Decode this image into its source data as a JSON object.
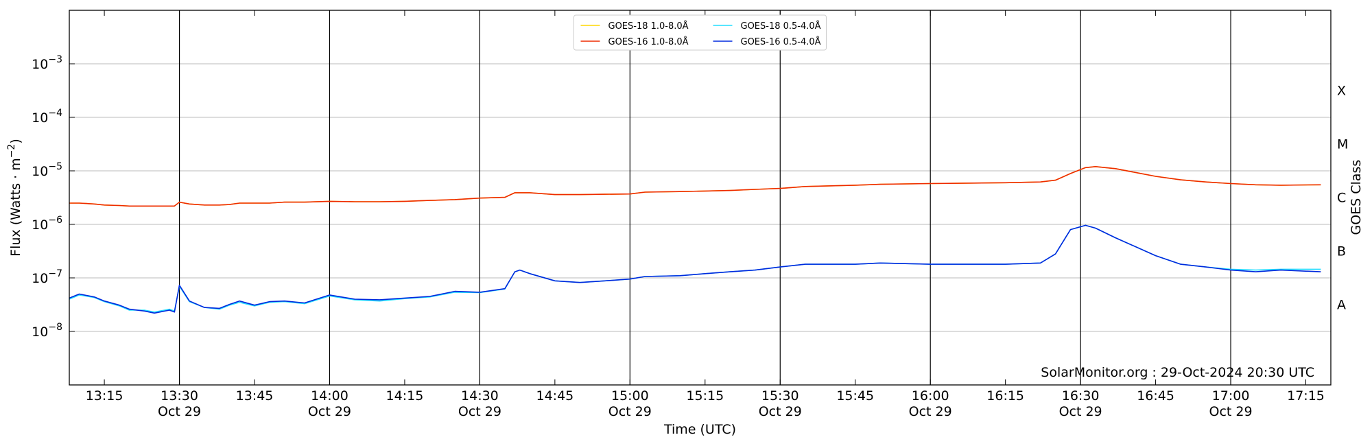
{
  "chart_data": {
    "type": "line",
    "xlabel": "Time (UTC)",
    "ylabel": {
      "base": "Flux (Watts · m",
      "exponent": "−2",
      "end": ")"
    },
    "y2label": "GOES Class",
    "annotation": "SolarMonitor.org : 29-Oct-2024 20:30 UTC",
    "log_y": true,
    "grid": true,
    "xgrid": true,
    "legend": "upper center",
    "legend_columns": 2,
    "xlim": [
      "13:08",
      "17:20"
    ],
    "xticks": [
      "13:15",
      {
        "value": "13:30",
        "label": [
          "13:30",
          "Oct 29"
        ]
      },
      "13:45",
      {
        "value": "14:00",
        "label": [
          "14:00",
          "Oct 29"
        ]
      },
      "14:15",
      {
        "value": "14:30",
        "label": [
          "14:30",
          "Oct 29"
        ]
      },
      "14:45",
      {
        "value": "15:00",
        "label": [
          "15:00",
          "Oct 29"
        ]
      },
      "15:15",
      {
        "value": "15:30",
        "label": [
          "15:30",
          "Oct 29"
        ]
      },
      "15:45",
      {
        "value": "16:00",
        "label": [
          "16:00",
          "Oct 29"
        ]
      },
      "16:15",
      {
        "value": "16:30",
        "label": [
          "16:30",
          "Oct 29"
        ]
      },
      "16:45",
      {
        "value": "17:00",
        "label": [
          "17:00",
          "Oct 29"
        ]
      },
      "17:15"
    ],
    "ylim": [
      1e-09,
      0.01
    ],
    "yticks": [
      {
        "value": 1e-08,
        "label": {
          "base": "10",
          "exponent": "−8"
        }
      },
      {
        "value": 1e-07,
        "label": {
          "base": "10",
          "exponent": "−7"
        }
      },
      {
        "value": 1e-06,
        "label": {
          "base": "10",
          "exponent": "−6"
        }
      },
      {
        "value": 1e-05,
        "label": {
          "base": "10",
          "exponent": "−5"
        }
      },
      {
        "value": 0.0001,
        "label": {
          "base": "10",
          "exponent": "−4"
        }
      },
      {
        "value": 0.001,
        "label": {
          "base": "10",
          "exponent": "−3"
        }
      }
    ],
    "y2lim": [
      1e-09,
      0.01
    ],
    "y2ticks": [
      {
        "value": 3.2e-08,
        "label": "A"
      },
      {
        "value": 3.2e-07,
        "label": "B"
      },
      {
        "value": 3.2e-06,
        "label": "C"
      },
      {
        "value": 3.2e-05,
        "label": "M"
      },
      {
        "value": 0.00032,
        "label": "X"
      }
    ],
    "x": [
      "13:08",
      "13:10",
      "13:13",
      "13:15",
      "13:18",
      "13:20",
      "13:23",
      "13:25",
      "13:28",
      "13:29",
      "13:30",
      "13:32",
      "13:35",
      "13:38",
      "13:40",
      "13:42",
      "13:45",
      "13:48",
      "13:51",
      "13:55",
      "14:00",
      "14:05",
      "14:10",
      "14:15",
      "14:20",
      "14:25",
      "14:30",
      "14:35",
      "14:37",
      "14:38",
      "14:40",
      "14:45",
      "14:50",
      "14:55",
      "15:00",
      "15:03",
      "15:10",
      "15:15",
      "15:20",
      "15:25",
      "15:30",
      "15:35",
      "15:45",
      "15:50",
      "16:00",
      "16:15",
      "16:22",
      "16:25",
      "16:28",
      "16:31",
      "16:33",
      "16:37",
      "16:45",
      "16:50",
      "16:55",
      "17:00",
      "17:05",
      "17:10",
      "17:18"
    ],
    "series": [
      {
        "name": "GOES-18 1.0-8.0Å",
        "color": "#ffd700",
        "values": [
          2.5e-06,
          2.5e-06,
          2.4e-06,
          2.3e-06,
          2.25e-06,
          2.2e-06,
          2.2e-06,
          2.2e-06,
          2.2e-06,
          2.2e-06,
          2.6e-06,
          2.4e-06,
          2.3e-06,
          2.3e-06,
          2.35e-06,
          2.5e-06,
          2.5e-06,
          2.5e-06,
          2.6e-06,
          2.6e-06,
          2.7e-06,
          2.65e-06,
          2.65e-06,
          2.7e-06,
          2.8e-06,
          2.9e-06,
          3.1e-06,
          3.2e-06,
          3.9e-06,
          3.9e-06,
          3.9e-06,
          3.6e-06,
          3.6e-06,
          3.65e-06,
          3.7e-06,
          4e-06,
          4.1e-06,
          4.2e-06,
          4.3e-06,
          4.5e-06,
          4.7e-06,
          5.1e-06,
          5.4e-06,
          5.6e-06,
          5.8e-06,
          6e-06,
          6.2e-06,
          6.7e-06,
          8.9e-06,
          1.15e-05,
          1.2e-05,
          1.1e-05,
          7.9e-06,
          6.8e-06,
          6.2e-06,
          5.8e-06,
          5.5e-06,
          5.4e-06,
          5.5e-06
        ]
      },
      {
        "name": "GOES-16 1.0-8.0Å",
        "color": "#ee2a00",
        "values": [
          2.5e-06,
          2.5e-06,
          2.4e-06,
          2.3e-06,
          2.25e-06,
          2.2e-06,
          2.2e-06,
          2.2e-06,
          2.2e-06,
          2.2e-06,
          2.6e-06,
          2.4e-06,
          2.3e-06,
          2.3e-06,
          2.35e-06,
          2.5e-06,
          2.5e-06,
          2.5e-06,
          2.6e-06,
          2.6e-06,
          2.7e-06,
          2.65e-06,
          2.65e-06,
          2.7e-06,
          2.8e-06,
          2.9e-06,
          3.1e-06,
          3.2e-06,
          3.9e-06,
          3.9e-06,
          3.9e-06,
          3.6e-06,
          3.6e-06,
          3.65e-06,
          3.7e-06,
          4e-06,
          4.1e-06,
          4.2e-06,
          4.3e-06,
          4.5e-06,
          4.7e-06,
          5.1e-06,
          5.4e-06,
          5.6e-06,
          5.8e-06,
          6e-06,
          6.2e-06,
          6.7e-06,
          8.9e-06,
          1.15e-05,
          1.2e-05,
          1.1e-05,
          7.9e-06,
          6.8e-06,
          6.2e-06,
          5.8e-06,
          5.5e-06,
          5.4e-06,
          5.5e-06
        ]
      },
      {
        "name": "GOES-18 0.5-4.0Å",
        "color": "#22ddff",
        "values": [
          4e-08,
          4.8e-08,
          4.3e-08,
          3.6e-08,
          3e-08,
          2.5e-08,
          2.5e-08,
          2.3e-08,
          2.6e-08,
          2.4e-08,
          7e-08,
          3.6e-08,
          2.8e-08,
          2.6e-08,
          3.1e-08,
          3.5e-08,
          3e-08,
          3.5e-08,
          3.6e-08,
          3.3e-08,
          4.6e-08,
          3.9e-08,
          3.7e-08,
          4.1e-08,
          4.4e-08,
          5.4e-08,
          5.3e-08,
          6.2e-08,
          1.3e-07,
          1.4e-07,
          1.2e-07,
          8.8e-08,
          8.2e-08,
          8.8e-08,
          9.5e-08,
          1.06e-07,
          1.1e-07,
          1.2e-07,
          1.3e-07,
          1.4e-07,
          1.6e-07,
          1.8e-07,
          1.8e-07,
          1.9e-07,
          1.8e-07,
          1.8e-07,
          1.9e-07,
          2.8e-07,
          8e-07,
          9.6e-07,
          8.5e-07,
          5.6e-07,
          2.6e-07,
          1.8e-07,
          1.6e-07,
          1.45e-07,
          1.4e-07,
          1.45e-07,
          1.45e-07
        ]
      },
      {
        "name": "GOES-16 0.5-4.0Å",
        "color": "#0028dd",
        "values": [
          4.2e-08,
          5e-08,
          4.4e-08,
          3.7e-08,
          3.1e-08,
          2.6e-08,
          2.4e-08,
          2.2e-08,
          2.5e-08,
          2.3e-08,
          7.3e-08,
          3.7e-08,
          2.8e-08,
          2.7e-08,
          3.2e-08,
          3.7e-08,
          3.1e-08,
          3.6e-08,
          3.7e-08,
          3.4e-08,
          4.8e-08,
          4e-08,
          3.9e-08,
          4.2e-08,
          4.5e-08,
          5.6e-08,
          5.4e-08,
          6.3e-08,
          1.3e-07,
          1.4e-07,
          1.2e-07,
          8.8e-08,
          8.2e-08,
          8.8e-08,
          9.5e-08,
          1.06e-07,
          1.1e-07,
          1.2e-07,
          1.3e-07,
          1.4e-07,
          1.6e-07,
          1.8e-07,
          1.8e-07,
          1.9e-07,
          1.8e-07,
          1.8e-07,
          1.9e-07,
          2.8e-07,
          8e-07,
          9.6e-07,
          8.5e-07,
          5.6e-07,
          2.6e-07,
          1.8e-07,
          1.6e-07,
          1.4e-07,
          1.3e-07,
          1.4e-07,
          1.3e-07
        ]
      }
    ]
  }
}
